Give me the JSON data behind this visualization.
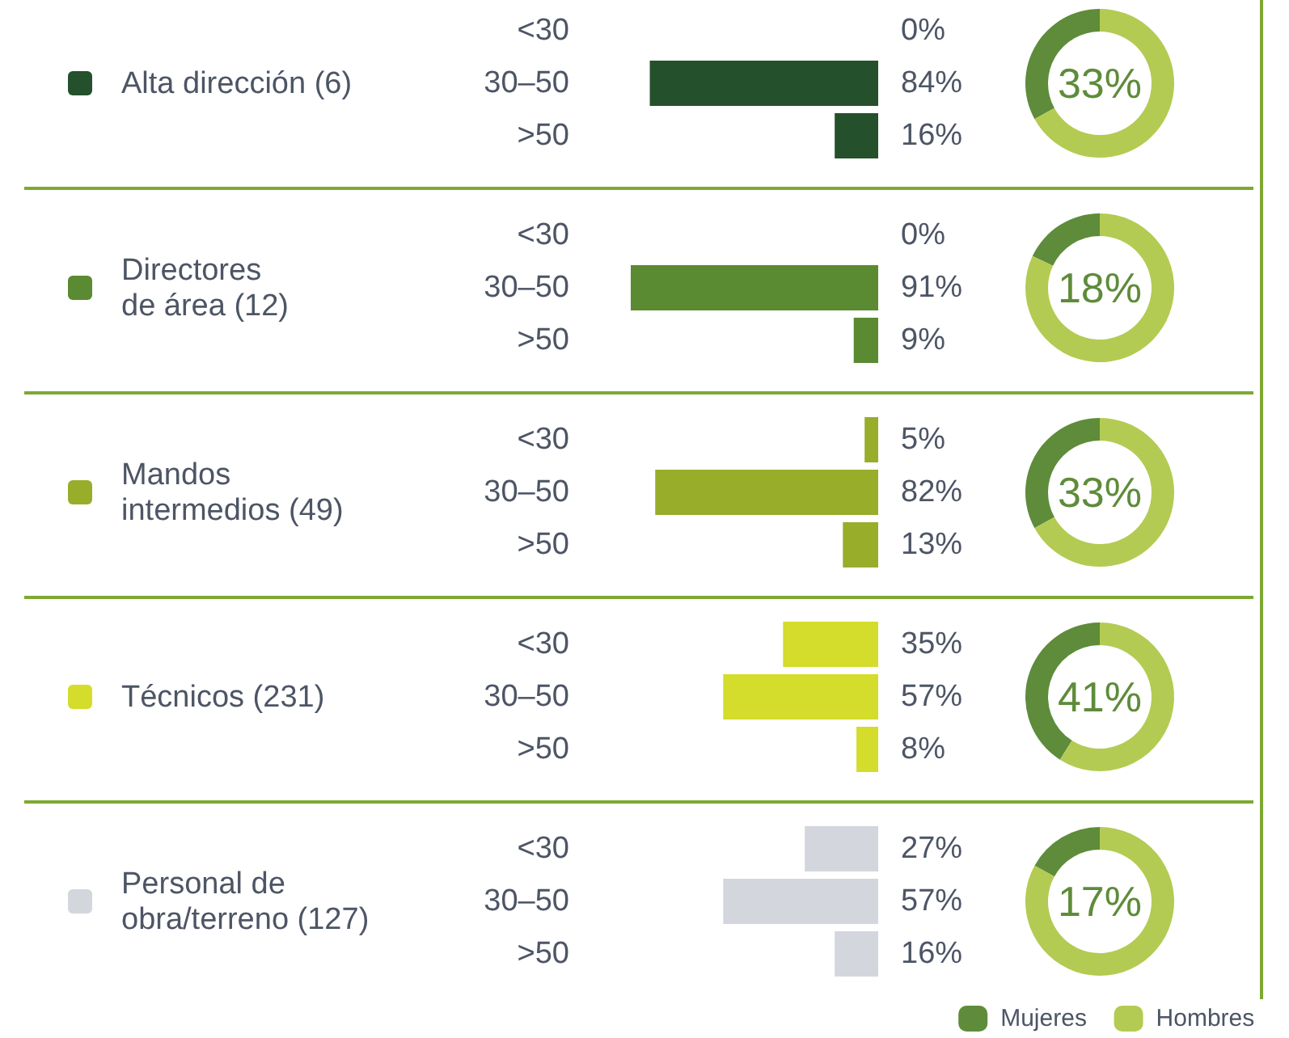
{
  "chart_data": [
    {
      "type": "bar",
      "orientation": "horizontal",
      "legend": "left",
      "categories": [
        "<30",
        "30–50",
        ">50"
      ],
      "series": [
        {
          "name": "Alta dirección (6)",
          "color": "#24502c",
          "values": [
            0,
            84,
            16
          ],
          "value_labels": [
            "0%",
            "84%",
            "16%"
          ]
        }
      ]
    },
    {
      "type": "donut",
      "categories": [
        null,
        null
      ],
      "values": [
        33,
        67
      ],
      "colors": [
        "#5e8c3a",
        "#b3cb52"
      ],
      "annotations": [
        "33%"
      ]
    },
    {
      "type": "bar",
      "orientation": "horizontal",
      "legend": "left",
      "categories": [
        "<30",
        "30–50",
        ">50"
      ],
      "series": [
        {
          "name": "Directores\nde área (12)",
          "color": "#5a8a32",
          "values": [
            0,
            91,
            9
          ],
          "value_labels": [
            "0%",
            "91%",
            "9%"
          ]
        }
      ]
    },
    {
      "type": "donut",
      "categories": [
        null,
        null
      ],
      "values": [
        18,
        82
      ],
      "colors": [
        "#5e8c3a",
        "#b3cb52"
      ],
      "annotations": [
        "18%"
      ]
    },
    {
      "type": "bar",
      "orientation": "horizontal",
      "legend": "left",
      "categories": [
        "<30",
        "30–50",
        ">50"
      ],
      "series": [
        {
          "name": "Mandos\nintermedios (49)",
          "color": "#98ad2a",
          "values": [
            5,
            82,
            13
          ],
          "value_labels": [
            "5%",
            "82%",
            "13%"
          ]
        }
      ]
    },
    {
      "type": "donut",
      "categories": [
        null,
        null
      ],
      "values": [
        33,
        67
      ],
      "colors": [
        "#5e8c3a",
        "#b3cb52"
      ],
      "annotations": [
        "33%"
      ]
    },
    {
      "type": "bar",
      "orientation": "horizontal",
      "legend": "left",
      "categories": [
        "<30",
        "30–50",
        ">50"
      ],
      "series": [
        {
          "name": "Técnicos (231)",
          "color": "#d4dc2c",
          "values": [
            35,
            57,
            8
          ],
          "value_labels": [
            "35%",
            "57%",
            "8%"
          ]
        }
      ]
    },
    {
      "type": "donut",
      "categories": [
        null,
        null
      ],
      "values": [
        41,
        59
      ],
      "colors": [
        "#5e8c3a",
        "#b3cb52"
      ],
      "annotations": [
        "41%"
      ]
    },
    {
      "type": "bar",
      "orientation": "horizontal",
      "legend": "left",
      "categories": [
        "<30",
        "30–50",
        ">50"
      ],
      "series": [
        {
          "name": "Personal de\nobra/terreno (127)",
          "color": "#d3d6dd",
          "values": [
            27,
            57,
            16
          ],
          "value_labels": [
            "27%",
            "57%",
            "16%"
          ]
        }
      ]
    },
    {
      "type": "donut",
      "categories": [
        "Mujeres",
        "Hombres"
      ],
      "values": [
        17,
        83
      ],
      "colors": [
        "#5e8c3a",
        "#b3cb52"
      ],
      "annotations": [
        "17%"
      ],
      "legend": "bottom right"
    }
  ]
}
